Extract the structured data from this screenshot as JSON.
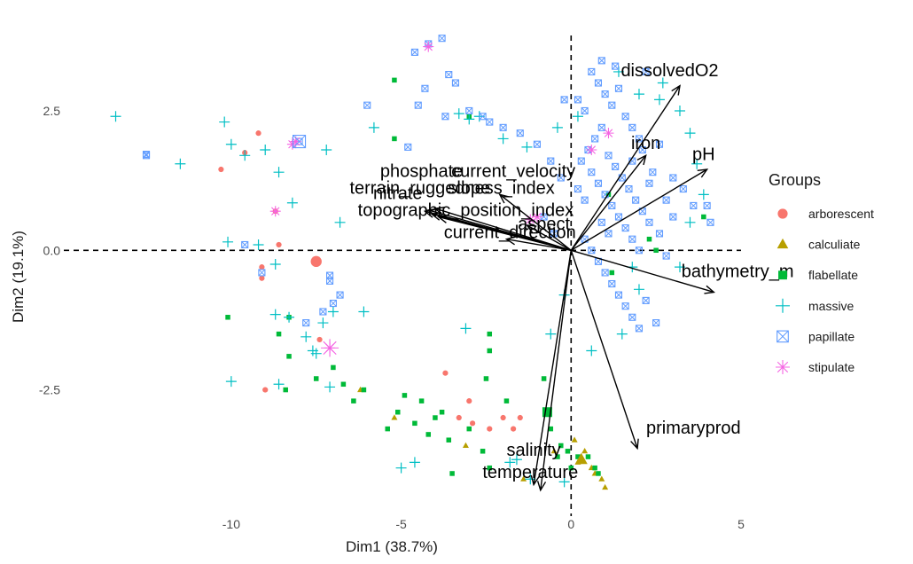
{
  "chart_data": {
    "type": "scatter",
    "subtype": "pca-biplot",
    "xlabel": "Dim1 (38.7%)",
    "ylabel": "Dim2 (19.1%)",
    "xlim": [
      -15.5,
      5.0
    ],
    "ylim": [
      -4.7,
      4.2
    ],
    "x_ticks": [
      -10,
      -5,
      0,
      5
    ],
    "x_tick_labels": [
      "-10",
      "-5",
      "0",
      "5"
    ],
    "y_ticks": [
      -2.5,
      0.0,
      2.5
    ],
    "y_tick_labels": [
      "-2.5",
      "0.0",
      "2.5"
    ],
    "grid": false,
    "reference_lines": {
      "x": 0,
      "y": 0,
      "style": "dashed"
    },
    "legend": {
      "title": "Groups",
      "position": "right",
      "entries": [
        {
          "label": "arborescent",
          "color": "#F8766D",
          "shape": "circle"
        },
        {
          "label": "calculiate",
          "color": "#B79F00",
          "shape": "triangle"
        },
        {
          "label": "flabellate",
          "color": "#00BA38",
          "shape": "square"
        },
        {
          "label": "massive",
          "color": "#00BFC4",
          "shape": "plus"
        },
        {
          "label": "papillate",
          "color": "#619CFF",
          "shape": "boxx"
        },
        {
          "label": "stipulate",
          "color": "#F564E3",
          "shape": "asterisk"
        }
      ]
    },
    "centroids": [
      {
        "group": "arborescent",
        "x": -7.5,
        "y": -0.2
      },
      {
        "group": "calculiate",
        "x": 0.3,
        "y": -3.75
      },
      {
        "group": "flabellate",
        "x": -0.7,
        "y": -2.9
      },
      {
        "group": "stipulate",
        "x": -7.1,
        "y": -1.75
      },
      {
        "group": "papillate",
        "x": -8.0,
        "y": 1.95
      }
    ],
    "series": [
      {
        "name": "arborescent",
        "points": [
          [
            -10.3,
            1.45
          ],
          [
            -9.6,
            1.75
          ],
          [
            -9.1,
            -0.3
          ],
          [
            -9.1,
            -0.5
          ],
          [
            -8.6,
            0.1
          ],
          [
            -7.4,
            -1.6
          ],
          [
            -9.0,
            -2.5
          ],
          [
            -3.7,
            -2.2
          ],
          [
            -3.0,
            -2.7
          ],
          [
            -2.9,
            -3.1
          ],
          [
            -2.4,
            -3.2
          ],
          [
            -2.0,
            -3.0
          ],
          [
            -1.5,
            -3.0
          ],
          [
            -1.7,
            -3.2
          ],
          [
            -3.3,
            -3.0
          ],
          [
            -9.2,
            2.1
          ],
          [
            -8.7,
            0.7
          ]
        ]
      },
      {
        "name": "calculiate",
        "points": [
          [
            -6.2,
            -2.5
          ],
          [
            -5.2,
            -3.0
          ],
          [
            -3.1,
            -3.5
          ],
          [
            -1.4,
            -4.1
          ],
          [
            0.4,
            -3.6
          ],
          [
            0.6,
            -3.9
          ],
          [
            0.9,
            -4.1
          ],
          [
            1.0,
            -4.25
          ],
          [
            0.2,
            -3.8
          ],
          [
            0.7,
            -4.0
          ],
          [
            -0.5,
            -3.6
          ],
          [
            0.1,
            -3.4
          ]
        ]
      },
      {
        "name": "flabellate",
        "points": [
          [
            -10.1,
            -1.2
          ],
          [
            -8.6,
            -1.5
          ],
          [
            -8.3,
            -1.9
          ],
          [
            -8.4,
            -2.5
          ],
          [
            -7.5,
            -2.3
          ],
          [
            -7.0,
            -2.1
          ],
          [
            -6.7,
            -2.4
          ],
          [
            -6.4,
            -2.7
          ],
          [
            -6.1,
            -2.5
          ],
          [
            -5.4,
            -3.2
          ],
          [
            -5.1,
            -2.9
          ],
          [
            -4.9,
            -2.6
          ],
          [
            -4.6,
            -3.1
          ],
          [
            -4.4,
            -2.7
          ],
          [
            -4.2,
            -3.3
          ],
          [
            -4.0,
            -3.0
          ],
          [
            -3.8,
            -2.9
          ],
          [
            -3.6,
            -3.4
          ],
          [
            -3.5,
            -4.0
          ],
          [
            -3.0,
            -3.2
          ],
          [
            -2.6,
            -3.6
          ],
          [
            -2.4,
            -3.9
          ],
          [
            -5.2,
            3.05
          ],
          [
            -5.2,
            2.0
          ],
          [
            -3.0,
            2.4
          ],
          [
            -2.4,
            -1.5
          ],
          [
            -2.4,
            -1.8
          ],
          [
            -2.5,
            -2.3
          ],
          [
            -1.9,
            -2.7
          ],
          [
            -0.8,
            -2.3
          ],
          [
            -0.7,
            -2.9
          ],
          [
            -0.6,
            -3.2
          ],
          [
            -0.4,
            -3.7
          ],
          [
            -0.3,
            -3.5
          ],
          [
            -0.1,
            -3.6
          ],
          [
            0.0,
            -3.9
          ],
          [
            0.2,
            -3.7
          ],
          [
            0.5,
            -3.7
          ],
          [
            0.7,
            -3.9
          ],
          [
            0.8,
            -4.0
          ],
          [
            1.2,
            -0.4
          ],
          [
            2.3,
            0.2
          ],
          [
            2.5,
            0.0
          ],
          [
            3.9,
            0.6
          ],
          [
            1.1,
            1.0
          ],
          [
            -8.3,
            -1.2
          ]
        ]
      },
      {
        "name": "massive",
        "points": [
          [
            -13.4,
            2.4
          ],
          [
            -11.5,
            1.55
          ],
          [
            -10.2,
            2.3
          ],
          [
            -10.0,
            1.9
          ],
          [
            -9.6,
            1.7
          ],
          [
            -9.0,
            1.8
          ],
          [
            -8.6,
            1.4
          ],
          [
            -8.2,
            0.85
          ],
          [
            -10.1,
            0.15
          ],
          [
            -9.2,
            0.1
          ],
          [
            -8.7,
            -0.25
          ],
          [
            -8.7,
            -1.15
          ],
          [
            -8.3,
            -1.2
          ],
          [
            -7.8,
            -1.55
          ],
          [
            -7.3,
            -1.3
          ],
          [
            -7.0,
            -1.1
          ],
          [
            -6.1,
            -1.1
          ],
          [
            -6.8,
            0.5
          ],
          [
            -7.2,
            1.8
          ],
          [
            -5.8,
            2.2
          ],
          [
            -10.0,
            -2.35
          ],
          [
            -8.6,
            -2.4
          ],
          [
            -7.5,
            -1.85
          ],
          [
            -7.1,
            -2.45
          ],
          [
            -7.6,
            -1.8
          ],
          [
            -3.1,
            -1.4
          ],
          [
            -5.0,
            -3.9
          ],
          [
            -4.6,
            -3.8
          ],
          [
            -1.8,
            -3.8
          ],
          [
            -1.6,
            -3.75
          ],
          [
            -1.2,
            -4.1
          ],
          [
            -0.2,
            -4.15
          ],
          [
            -3.3,
            2.45
          ],
          [
            -3.0,
            2.35
          ],
          [
            -2.7,
            2.4
          ],
          [
            -2.0,
            2.0
          ],
          [
            -1.3,
            1.85
          ],
          [
            -0.4,
            2.2
          ],
          [
            0.2,
            2.4
          ],
          [
            2.0,
            2.8
          ],
          [
            2.6,
            2.7
          ],
          [
            3.2,
            2.5
          ],
          [
            3.5,
            2.1
          ],
          [
            3.7,
            1.55
          ],
          [
            3.5,
            0.5
          ],
          [
            3.9,
            1.0
          ],
          [
            1.8,
            -0.3
          ],
          [
            2.0,
            -0.7
          ],
          [
            1.5,
            -1.5
          ],
          [
            0.6,
            -1.8
          ],
          [
            -0.2,
            -0.8
          ],
          [
            -0.6,
            -1.5
          ],
          [
            1.4,
            3.2
          ],
          [
            2.7,
            3.0
          ],
          [
            3.2,
            -0.3
          ]
        ]
      },
      {
        "name": "papillate",
        "points": [
          [
            -12.5,
            1.7
          ],
          [
            -12.5,
            1.72
          ],
          [
            -8.0,
            1.95
          ],
          [
            -6.0,
            2.6
          ],
          [
            -4.8,
            1.85
          ],
          [
            -3.8,
            3.8
          ],
          [
            -4.2,
            3.7
          ],
          [
            -4.6,
            3.55
          ],
          [
            -4.3,
            2.9
          ],
          [
            -3.6,
            3.15
          ],
          [
            -3.4,
            3.0
          ],
          [
            -3.7,
            2.4
          ],
          [
            -3.0,
            2.5
          ],
          [
            -2.6,
            2.4
          ],
          [
            -2.4,
            2.3
          ],
          [
            -2.0,
            2.2
          ],
          [
            -4.5,
            2.6
          ],
          [
            -7.1,
            -0.45
          ],
          [
            -7.1,
            -0.55
          ],
          [
            -6.8,
            -0.8
          ],
          [
            -7.0,
            -0.95
          ],
          [
            -7.3,
            -1.1
          ],
          [
            -7.8,
            -1.3
          ],
          [
            -9.1,
            -0.4
          ],
          [
            -9.6,
            0.1
          ],
          [
            -1.5,
            2.1
          ],
          [
            -1.0,
            1.9
          ],
          [
            -0.6,
            1.6
          ],
          [
            -0.3,
            1.3
          ],
          [
            0.2,
            1.1
          ],
          [
            0.4,
            0.9
          ],
          [
            -0.8,
            0.6
          ],
          [
            -0.5,
            0.3
          ],
          [
            0.6,
            3.2
          ],
          [
            0.8,
            3.0
          ],
          [
            1.0,
            2.8
          ],
          [
            1.2,
            2.6
          ],
          [
            1.4,
            2.9
          ],
          [
            1.6,
            2.4
          ],
          [
            1.8,
            2.2
          ],
          [
            2.0,
            2.0
          ],
          [
            0.9,
            2.2
          ],
          [
            0.7,
            2.0
          ],
          [
            0.5,
            1.8
          ],
          [
            1.1,
            1.7
          ],
          [
            1.3,
            1.5
          ],
          [
            1.5,
            1.3
          ],
          [
            1.7,
            1.1
          ],
          [
            1.9,
            0.9
          ],
          [
            2.1,
            0.7
          ],
          [
            2.3,
            0.5
          ],
          [
            0.6,
            1.4
          ],
          [
            0.8,
            1.2
          ],
          [
            1.0,
            1.0
          ],
          [
            1.2,
            0.8
          ],
          [
            1.4,
            0.6
          ],
          [
            1.6,
            0.4
          ],
          [
            1.8,
            0.2
          ],
          [
            2.0,
            0.0
          ],
          [
            0.8,
            -0.2
          ],
          [
            1.0,
            -0.4
          ],
          [
            1.2,
            -0.6
          ],
          [
            1.4,
            -0.8
          ],
          [
            1.6,
            -1.0
          ],
          [
            1.8,
            -1.2
          ],
          [
            2.0,
            -1.4
          ],
          [
            2.2,
            -0.9
          ],
          [
            2.5,
            -1.3
          ],
          [
            2.8,
            0.9
          ],
          [
            3.0,
            1.3
          ],
          [
            3.3,
            1.1
          ],
          [
            3.6,
            0.8
          ],
          [
            4.0,
            0.8
          ],
          [
            4.1,
            0.5
          ],
          [
            2.6,
            1.9
          ],
          [
            0.9,
            3.4
          ],
          [
            1.3,
            3.3
          ],
          [
            2.2,
            3.2
          ],
          [
            0.2,
            2.7
          ],
          [
            0.4,
            2.5
          ],
          [
            0.3,
            1.6
          ],
          [
            -0.2,
            2.7
          ],
          [
            1.8,
            1.6
          ],
          [
            2.4,
            1.4
          ],
          [
            2.6,
            0.3
          ],
          [
            2.8,
            -0.1
          ],
          [
            3.0,
            0.6
          ],
          [
            0.4,
            0.2
          ],
          [
            0.6,
            0.0
          ],
          [
            0.9,
            0.5
          ],
          [
            1.1,
            0.3
          ],
          [
            2.1,
            1.8
          ],
          [
            2.3,
            1.2
          ]
        ]
      },
      {
        "name": "stipulate",
        "points": [
          [
            -4.2,
            3.65
          ],
          [
            -8.2,
            1.9
          ],
          [
            -8.1,
            1.95
          ],
          [
            -8.7,
            0.7
          ],
          [
            -7.1,
            -1.75
          ],
          [
            -1.0,
            0.6
          ],
          [
            -1.2,
            0.55
          ],
          [
            0.6,
            1.8
          ],
          [
            1.1,
            2.1
          ]
        ]
      }
    ],
    "variables": [
      {
        "name": "dissolvedO2",
        "x": 3.2,
        "y": 2.95
      },
      {
        "name": "iron",
        "x": 2.2,
        "y": 1.7
      },
      {
        "name": "pH",
        "x": 4.0,
        "y": 1.45
      },
      {
        "name": "bathymetry_m",
        "x": 4.2,
        "y": -0.75
      },
      {
        "name": "primaryprod",
        "x": 1.95,
        "y": -3.55
      },
      {
        "name": "salinity",
        "x": -1.1,
        "y": -4.2
      },
      {
        "name": "temperature",
        "x": -0.9,
        "y": -4.3
      },
      {
        "name": "phosphate",
        "x": -4.0,
        "y": 0.75
      },
      {
        "name": "current_velocity",
        "x": -2.1,
        "y": 1.0
      },
      {
        "name": "terrain_ruggedness_index",
        "x": -4.2,
        "y": 0.72
      },
      {
        "name": "nitrate",
        "x": -4.3,
        "y": 0.7
      },
      {
        "name": "slope",
        "x": -4.1,
        "y": 0.65
      },
      {
        "name": "topographic_position_index",
        "x": -3.9,
        "y": 0.6
      },
      {
        "name": "aspect",
        "x": -1.3,
        "y": 0.45
      },
      {
        "name": "current_direction",
        "x": -1.9,
        "y": 0.2
      }
    ],
    "variable_labels": [
      {
        "text": "dissolvedO2",
        "x": 2.9,
        "y": 3.2
      },
      {
        "text": "iron",
        "x": 2.2,
        "y": 1.9
      },
      {
        "text": "pH",
        "x": 3.9,
        "y": 1.7
      },
      {
        "text": "bathymetry_m",
        "x": 4.9,
        "y": -0.4
      },
      {
        "text": "primaryprod",
        "x": 3.6,
        "y": -3.2
      },
      {
        "text": "salinity",
        "x": -1.1,
        "y": -3.6
      },
      {
        "text": "temperature",
        "x": -1.2,
        "y": -4.0
      },
      {
        "text": "phosphate",
        "x": -4.4,
        "y": 1.4
      },
      {
        "text": "current_velocity",
        "x": -1.7,
        "y": 1.4
      },
      {
        "text": "terrain_ruggedness_index",
        "x": -3.5,
        "y": 1.1
      },
      {
        "text": "nitrate",
        "x": -5.1,
        "y": 1.0
      },
      {
        "text": "slope",
        "x": -3.0,
        "y": 1.1
      },
      {
        "text": "topographic_position_index",
        "x": -3.1,
        "y": 0.7
      },
      {
        "text": "aspect",
        "x": -0.8,
        "y": 0.45
      },
      {
        "text": "current_direction",
        "x": -1.8,
        "y": 0.3
      }
    ]
  }
}
